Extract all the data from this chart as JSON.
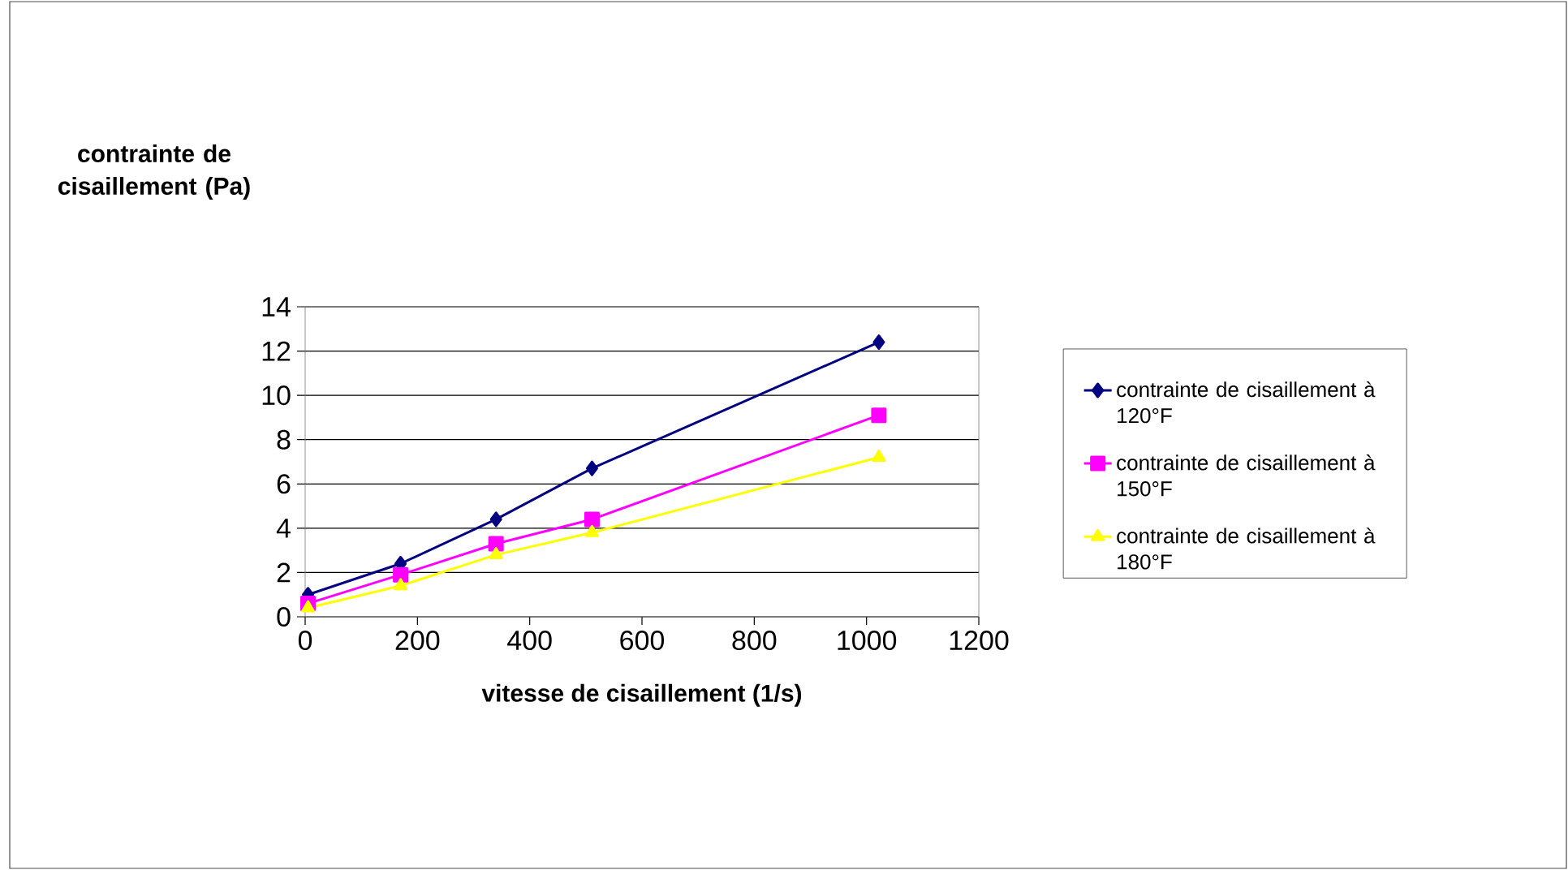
{
  "chart_data": {
    "type": "line",
    "xlabel": "vitesse de cisaillement (1/s)",
    "ylabel": "contrainte de cisaillement (Pa)",
    "x": [
      5.1,
      170,
      340,
      511,
      1022
    ],
    "series": [
      {
        "name": "contrainte de cisaillement à 120°F",
        "color": "#000080",
        "marker": "diamond",
        "values": [
          1.0,
          2.4,
          4.4,
          6.7,
          12.4
        ]
      },
      {
        "name": "contrainte de cisaillement à 150°F",
        "color": "#ff00ff",
        "marker": "square",
        "values": [
          0.6,
          1.9,
          3.3,
          4.4,
          9.1
        ]
      },
      {
        "name": "contrainte de cisaillement à 180°F",
        "color": "#ffff00",
        "marker": "triangle",
        "values": [
          0.4,
          1.4,
          2.8,
          3.8,
          7.2
        ]
      }
    ],
    "xlim": [
      0,
      1200
    ],
    "xticks": [
      0,
      200,
      400,
      600,
      800,
      1000,
      1200
    ],
    "ylim": [
      0,
      14
    ],
    "yticks": [
      0,
      2,
      4,
      6,
      8,
      10,
      12,
      14
    ],
    "grid": "y",
    "legend": "right",
    "line_style": "solid"
  }
}
